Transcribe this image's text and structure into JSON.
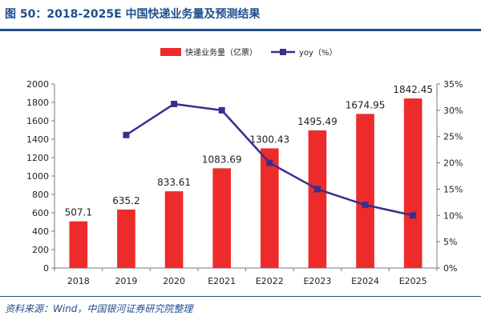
{
  "title": "图 50：2018-2025E 中国快递业务量及预测结果",
  "source": "资料来源：Wind，中国银河证券研究院整理",
  "colors": {
    "bar": "#ee2b2b",
    "line": "#3b2e8f",
    "accent": "#1f4e8c"
  },
  "chart_data": {
    "type": "bar",
    "categories": [
      "2018",
      "2019",
      "2020",
      "E2021",
      "E2022",
      "E2023",
      "E2024",
      "E2025"
    ],
    "series": [
      {
        "name": "快递业务量（亿票）",
        "type": "bar",
        "axis": "left",
        "values": [
          507.1,
          635.2,
          833.61,
          1083.69,
          1300.43,
          1495.49,
          1674.95,
          1842.45
        ],
        "labels": [
          "507.1",
          "635.2",
          "833.61",
          "1083.69",
          "1300.43",
          "1495.49",
          "1674.95",
          "1842.45"
        ]
      },
      {
        "name": "yoy（%）",
        "type": "line",
        "axis": "right",
        "values": [
          null,
          25.3,
          31.2,
          30.0,
          20.0,
          15.0,
          12.0,
          10.0
        ]
      }
    ],
    "y_left": {
      "ylim": [
        0,
        2000
      ],
      "ticks": [
        "0",
        "200",
        "400",
        "600",
        "800",
        "1000",
        "1200",
        "1400",
        "1600",
        "1800",
        "2000"
      ]
    },
    "y_right": {
      "ylim": [
        0,
        35
      ],
      "ticks": [
        "0%",
        "5%",
        "10%",
        "15%",
        "20%",
        "25%",
        "30%",
        "35%"
      ]
    },
    "legend_position": "top-center",
    "grid": false
  }
}
